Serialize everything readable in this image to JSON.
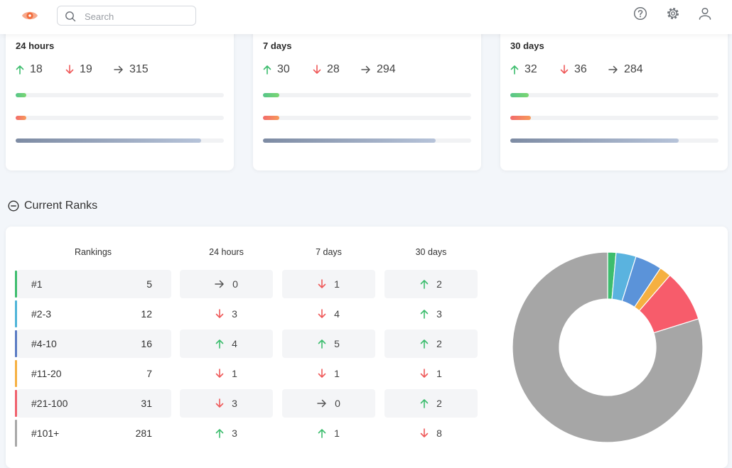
{
  "header": {
    "search_placeholder": "Search",
    "icons": [
      "eye-logo-icon",
      "search-icon",
      "help-icon",
      "gear-icon",
      "user-icon"
    ],
    "logo_color": "#f26b3a"
  },
  "summary": [
    {
      "title": "24 hours",
      "up": "18",
      "down": "19",
      "same": "315",
      "up_fraction": 0.05,
      "down_fraction": 0.05,
      "same_fraction": 0.89
    },
    {
      "title": "7 days",
      "up": "30",
      "down": "28",
      "same": "294",
      "up_fraction": 0.08,
      "down_fraction": 0.08,
      "same_fraction": 0.83
    },
    {
      "title": "30 days",
      "up": "32",
      "down": "36",
      "same": "284",
      "up_fraction": 0.09,
      "down_fraction": 0.1,
      "same_fraction": 0.81
    }
  ],
  "section": {
    "title": "Current Ranks"
  },
  "table": {
    "headers": {
      "rankings": "Rankings",
      "h24": "24 hours",
      "d7": "7 days",
      "d30": "30 days"
    },
    "rows": [
      {
        "label": "#1",
        "count": "5",
        "color": "#3dbd6e",
        "h24": {
          "dir": "same",
          "val": "0"
        },
        "d7": {
          "dir": "down",
          "val": "1"
        },
        "d30": {
          "dir": "up",
          "val": "2"
        }
      },
      {
        "label": "#2-3",
        "count": "12",
        "color": "#4fb4d8",
        "h24": {
          "dir": "down",
          "val": "3"
        },
        "d7": {
          "dir": "down",
          "val": "4"
        },
        "d30": {
          "dir": "up",
          "val": "3"
        }
      },
      {
        "label": "#4-10",
        "count": "16",
        "color": "#5a7bc4",
        "h24": {
          "dir": "up",
          "val": "4"
        },
        "d7": {
          "dir": "up",
          "val": "5"
        },
        "d30": {
          "dir": "up",
          "val": "2"
        }
      },
      {
        "label": "#11-20",
        "count": "7",
        "color": "#f5b041",
        "h24": {
          "dir": "down",
          "val": "1"
        },
        "d7": {
          "dir": "down",
          "val": "1"
        },
        "d30": {
          "dir": "down",
          "val": "1"
        }
      },
      {
        "label": "#21-100",
        "count": "31",
        "color": "#f0616d",
        "h24": {
          "dir": "down",
          "val": "3"
        },
        "d7": {
          "dir": "same",
          "val": "0"
        },
        "d30": {
          "dir": "up",
          "val": "2"
        }
      },
      {
        "label": "#101+",
        "count": "281",
        "color": "#a8a8a8",
        "h24": {
          "dir": "up",
          "val": "3"
        },
        "d7": {
          "dir": "up",
          "val": "1"
        },
        "d30": {
          "dir": "down",
          "val": "8"
        }
      }
    ]
  },
  "chart_data": {
    "type": "pie",
    "style": "donut",
    "labels": [
      "#1",
      "#2-3",
      "#4-10",
      "#11-20",
      "#21-100",
      "#101+"
    ],
    "values": [
      5,
      12,
      16,
      7,
      31,
      281
    ],
    "colors": [
      "#3dbd6e",
      "#5ab3df",
      "#5b93d9",
      "#f5b041",
      "#f75c6b",
      "#a6a6a6"
    ]
  }
}
